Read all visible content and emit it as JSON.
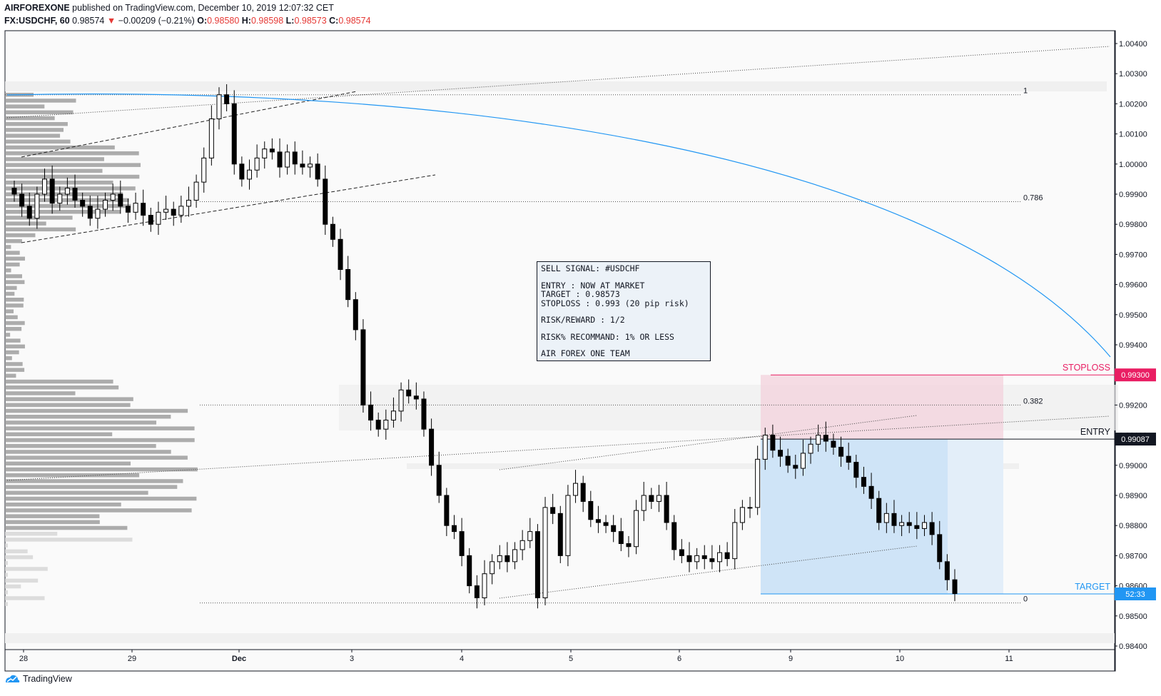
{
  "header": {
    "publisher": "AIRFOREXONE",
    "published_text": "published on TradingView.com, December 10, 2019 12:07:32 CET",
    "symbol": "FX:USDCHF, 60",
    "last": "0.98574",
    "change_arrow": "▼",
    "change": "−0.00209 (−0.21%)",
    "o_label": "O:",
    "o": "0.98580",
    "h_label": "H:",
    "h": "0.98598",
    "l_label": "L:",
    "l": "0.98573",
    "c_label": "C:",
    "c": "0.98574"
  },
  "signal_box": {
    "line1": "SELL SIGNAL:  #USDCHF",
    "line2": "ENTRY : NOW AT MARKET",
    "line3": "TARGET : 0.98573",
    "line4": "STOPLOSS : 0.993 (20 pip risk)",
    "line5": "RISK/REWARD : 1/2",
    "line6": "RISK% RECOMMAND: 1% OR LESS",
    "line7": "AIR FOREX ONE  TEAM"
  },
  "footer": {
    "brand": "TradingView",
    "logo_icon": "tradingview-logo-icon"
  },
  "colors": {
    "up": "#ffffff",
    "down": "#000000",
    "stop_zone": "#f3d6df",
    "target_zone": "#cfe4f7",
    "stoploss": "#e91e63",
    "target": "#2196f3",
    "arc": "#2196f3"
  },
  "chart_data": {
    "type": "candlestick",
    "y_ticks": [
      "1.00400",
      "1.00300",
      "1.00200",
      "1.00100",
      "1.00000",
      "0.99900",
      "0.99800",
      "0.99700",
      "0.99600",
      "0.99500",
      "0.99400",
      "0.99300",
      "0.99200",
      "0.99100",
      "0.99000",
      "0.98900",
      "0.98800",
      "0.98700",
      "0.98600",
      "0.98500",
      "0.98400"
    ],
    "ylim": [
      0.984,
      1.004
    ],
    "x_ticks": [
      "28",
      "29",
      "Dec",
      "3",
      "4",
      "5",
      "6",
      "9",
      "10",
      "11"
    ],
    "price_labels": [
      {
        "text": "STOPLOSS",
        "value": "0.99300"
      },
      {
        "text": "ENTRY",
        "value": "0.99087"
      },
      {
        "text": "TARGET",
        "value": "52:33"
      }
    ],
    "fib_levels": [
      {
        "label": "1",
        "price": 1.0023
      },
      {
        "label": "0.786",
        "price": 0.99875
      },
      {
        "label": "0.382",
        "price": 0.992
      },
      {
        "label": "0",
        "price": 0.98543
      }
    ],
    "stoploss": 0.993,
    "entry": 0.99087,
    "target": 0.98573,
    "series": [
      {
        "name": "USDCHF",
        "close": [
          0.999,
          0.9986,
          0.9982,
          0.999,
          0.9995,
          0.9987,
          0.999,
          0.9992,
          0.9988,
          0.9986,
          0.9982,
          0.9985,
          0.9988,
          0.999,
          0.9986,
          0.9984,
          0.9987,
          0.9983,
          0.998,
          0.9984,
          0.9985,
          0.9983,
          0.9986,
          0.9988,
          0.9994,
          1.0002,
          1.0015,
          1.0023,
          1.002,
          1.0,
          0.9995,
          0.9998,
          1.0002,
          1.0005,
          1.0004,
          0.9999,
          1.0004,
          1.0,
          0.9999,
          1.0,
          0.9995,
          0.998,
          0.9975,
          0.9965,
          0.9955,
          0.9945,
          0.992,
          0.9915,
          0.9912,
          0.9915,
          0.9918,
          0.9925,
          0.9923,
          0.9922,
          0.9912,
          0.99,
          0.989,
          0.988,
          0.9878,
          0.987,
          0.986,
          0.9856,
          0.9864,
          0.9868,
          0.987,
          0.9868,
          0.9872,
          0.9875,
          0.9878,
          0.9856,
          0.9886,
          0.9884,
          0.987,
          0.989,
          0.9894,
          0.9888,
          0.9882,
          0.9881,
          0.988,
          0.9878,
          0.9874,
          0.9873,
          0.9885,
          0.989,
          0.9888,
          0.989,
          0.9881,
          0.9872,
          0.987,
          0.9868,
          0.987,
          0.9869,
          0.9868,
          0.9871,
          0.9869,
          0.9881,
          0.9886,
          0.9886,
          0.9902,
          0.991,
          0.9905,
          0.9903,
          0.99,
          0.9899,
          0.9904,
          0.9907,
          0.991,
          0.9908,
          0.9906,
          0.9903,
          0.9901,
          0.9896,
          0.9893,
          0.9889,
          0.9881,
          0.9884,
          0.988,
          0.9881,
          0.988,
          0.9879,
          0.9881,
          0.9877,
          0.9868,
          0.9862,
          0.98574
        ]
      }
    ]
  }
}
